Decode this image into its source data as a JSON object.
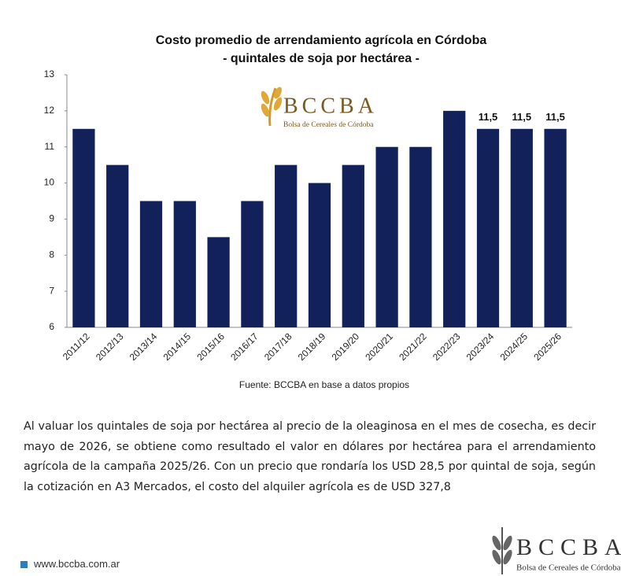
{
  "chart_data": {
    "type": "bar",
    "title": "Costo promedio de arrendamiento agrícola en Córdoba",
    "subtitle": "- quintales de soja por hectárea -",
    "categories": [
      "2011/12",
      "2012/13",
      "2013/14",
      "2014/15",
      "2015/16",
      "2016/17",
      "2017/18",
      "2018/19",
      "2019/20",
      "2020/21",
      "2021/22",
      "2022/23",
      "2023/24",
      "2024/25",
      "2025/26"
    ],
    "values": [
      11.5,
      10.5,
      9.5,
      9.5,
      8.5,
      9.5,
      10.5,
      10,
      10.5,
      11,
      11,
      12,
      11.5,
      11.5,
      11.5
    ],
    "value_labels": [
      null,
      null,
      null,
      null,
      null,
      null,
      null,
      null,
      null,
      null,
      null,
      null,
      "11,5",
      "11,5",
      "11,5"
    ],
    "color": "#13215a",
    "ylim": [
      6,
      13
    ],
    "yticks": [
      6,
      7,
      8,
      9,
      10,
      11,
      12,
      13
    ],
    "grid": false,
    "source": "Fuente: BCCBA en base a datos propios"
  },
  "logo": {
    "name": "BCCBA",
    "subtitle": "Bolsa de Cereales de Córdoba"
  },
  "paragraph": "Al valuar los quintales de soja por hectárea al precio de la oleaginosa en el mes de cosecha, es decir mayo de 2026, se obtiene como resultado el valor en dólares por hectárea para el arrendamiento agrícola de la campaña 2025/26. Con un precio que rondaría los USD 28,5 por quintal de soja, según la cotización en A3 Mercados, el costo del alquiler agrícola es de USD 327,8",
  "footer": {
    "website": "www.bccba.com.ar"
  }
}
